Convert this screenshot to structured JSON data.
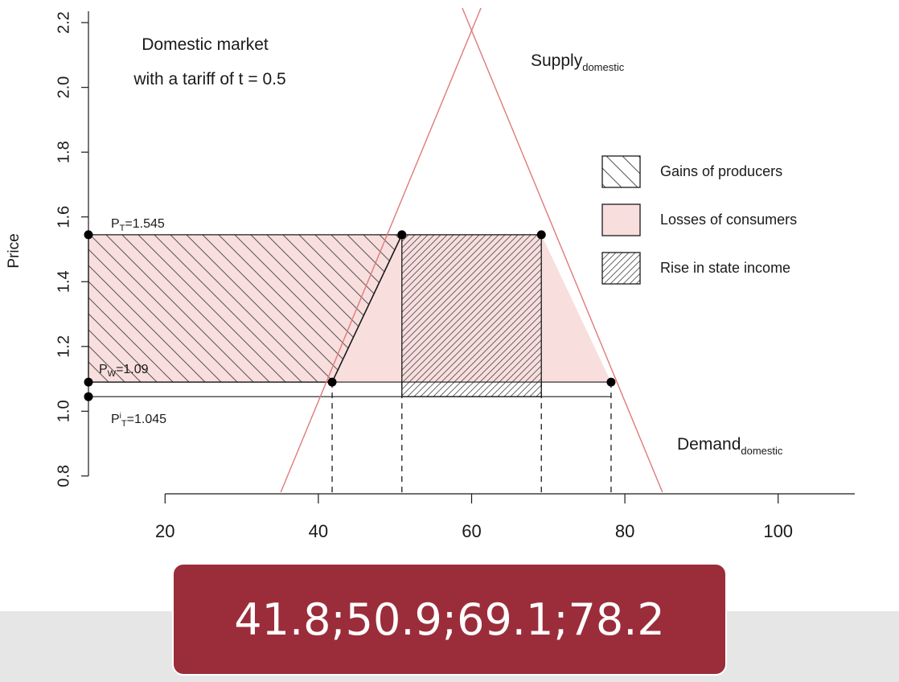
{
  "chart_data": {
    "type": "line",
    "title_lines": [
      "Domestic market",
      "with a tariff of t = 0.5"
    ],
    "xlabel": "",
    "ylabel": "Price",
    "xlim": [
      10,
      110
    ],
    "ylim": [
      0.745,
      2.245
    ],
    "x_ticks": [
      20,
      40,
      60,
      80,
      100
    ],
    "y_ticks": [
      0.8,
      1.0,
      1.2,
      1.4,
      1.6,
      1.8,
      2.0,
      2.2
    ],
    "y_tick_labels": [
      "0.8",
      "1.0",
      "1.2",
      "1.4",
      "1.6",
      "1.8",
      "2.0",
      "2.2"
    ],
    "supply_line": {
      "label": "Supply",
      "subscript": "domestic",
      "points": [
        [
          35.1,
          0.75
        ],
        [
          61.3,
          2.25
        ]
      ]
    },
    "demand_line": {
      "label": "Demand",
      "subscript": "domestic",
      "points": [
        [
          84.9,
          0.75
        ],
        [
          58.7,
          2.25
        ]
      ]
    },
    "price_levels": [
      {
        "label": "P",
        "sub": "T",
        "sup": "",
        "value_text": "=1.545",
        "y": 1.545
      },
      {
        "label": "P",
        "sub": "W",
        "sup": "",
        "value_text": "=1.09",
        "y": 1.09
      },
      {
        "label": "P",
        "sub": "T",
        "sup": "i",
        "value_text": "=1.045",
        "y": 1.045
      }
    ],
    "points": [
      {
        "x": 10,
        "y": 1.545
      },
      {
        "x": 50.9,
        "y": 1.545
      },
      {
        "x": 69.1,
        "y": 1.545
      },
      {
        "x": 10,
        "y": 1.09
      },
      {
        "x": 41.8,
        "y": 1.09
      },
      {
        "x": 78.2,
        "y": 1.09
      },
      {
        "x": 10,
        "y": 1.045
      }
    ],
    "quantity_markers": [
      41.8,
      50.9,
      69.1,
      78.2
    ],
    "legend": {
      "position": "right",
      "items": [
        {
          "label": "Gains of producers",
          "style": "hatch-back"
        },
        {
          "label": "Losses of consumers",
          "style": "fill"
        },
        {
          "label": "Rise in state income",
          "style": "hatch-fwd"
        }
      ]
    },
    "colors": {
      "curve": "#e07a7a",
      "fill": "#f9dede",
      "ink": "#1a1a1a"
    }
  },
  "answer": "41.8;50.9;69.1;78.2"
}
